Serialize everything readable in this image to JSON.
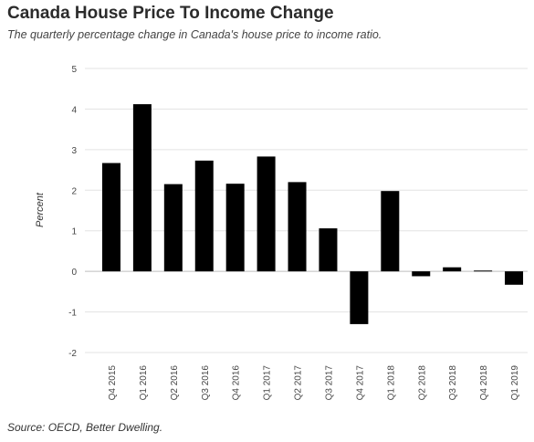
{
  "header": {
    "title": "Canada House Price To Income Change",
    "subtitle": "The quarterly percentage change in Canada's house price to income ratio."
  },
  "footer": {
    "source": "Source: OECD, Better Dwelling."
  },
  "chart_data": {
    "type": "bar",
    "title": "Canada House Price To Income Change",
    "subtitle": "The quarterly percentage change in Canada's house price to income ratio.",
    "xlabel": "",
    "ylabel": "Percent",
    "ylim": [
      -2,
      5
    ],
    "yticks": [
      5,
      4,
      3,
      2,
      1,
      0,
      -1,
      -2
    ],
    "grid": true,
    "bar_color": "#000000",
    "categories": [
      "Q4 2015",
      "Q1 2016",
      "Q2 2016",
      "Q3 2016",
      "Q4 2016",
      "Q1 2017",
      "Q2 2017",
      "Q3 2017",
      "Q4 2017",
      "Q1 2018",
      "Q2 2018",
      "Q3 2018",
      "Q4 2018",
      "Q1 2019"
    ],
    "values": [
      2.67,
      4.12,
      2.15,
      2.73,
      2.16,
      2.83,
      2.2,
      1.06,
      -1.3,
      1.98,
      -0.12,
      0.1,
      0.02,
      -0.33
    ]
  }
}
